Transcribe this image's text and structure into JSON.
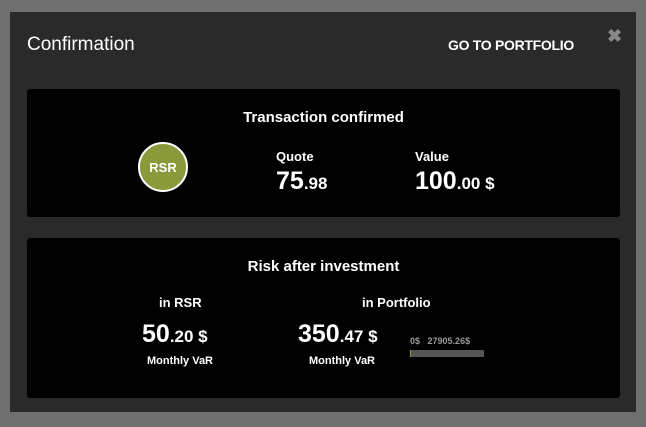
{
  "modal": {
    "title": "Confirmation",
    "go_to_portfolio": "GO TO PORTFOLIO",
    "close_icon": "close-icon"
  },
  "transaction": {
    "title": "Transaction confirmed",
    "badge": "RSR",
    "quote_label": "Quote",
    "quote_int": "75",
    "quote_dec": ".98",
    "value_label": "Value",
    "value_int": "100",
    "value_dec": ".00",
    "value_unit": " $"
  },
  "risk": {
    "title": "Risk after investment",
    "rsr": {
      "label": "in RSR",
      "int": "50",
      "dec": ".20",
      "unit": " $",
      "sub": "Monthly VaR"
    },
    "portfolio": {
      "label": "in Portfolio",
      "int": "350",
      "dec": ".47",
      "unit": " $",
      "sub": "Monthly VaR",
      "bar_min": "0$",
      "bar_max": "27905.26$",
      "bar_fill_percent": 1.26
    }
  },
  "colors": {
    "accent": "#8a9a3a"
  }
}
